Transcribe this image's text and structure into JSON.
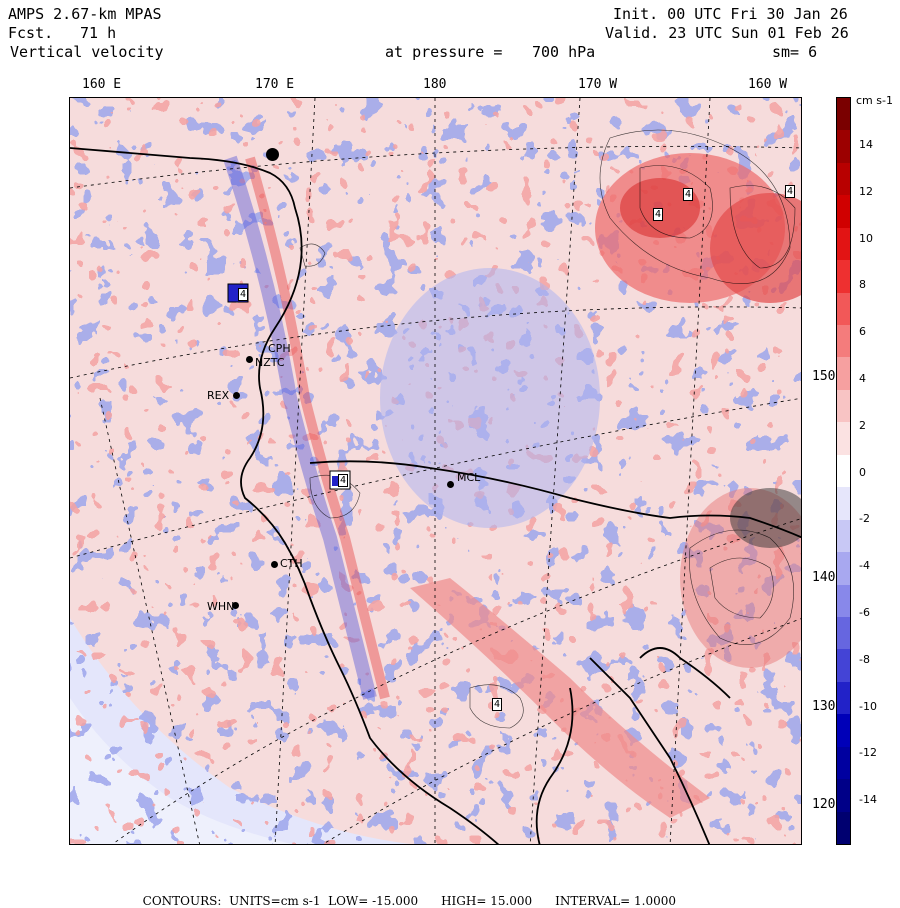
{
  "header": {
    "model": "AMPS 2.67-km MPAS",
    "fcst_label": "Fcst.",
    "fcst_value": "71 h",
    "field": "Vertical velocity",
    "init": "Init. 00 UTC Fri 30 Jan 26",
    "valid": "Valid. 23 UTC Sun 01 Feb 26",
    "pressure_label": "at pressure =",
    "pressure_value": "700 hPa",
    "smooth": "sm= 6"
  },
  "longitude_labels": [
    "160 E",
    "170 E",
    "180",
    "170 W",
    "160 W"
  ],
  "latitude_labels": [
    "150 W",
    "140 W",
    "130 W",
    "120 W"
  ],
  "colorbar": {
    "unit": "cm s-1",
    "ticks": [
      "14",
      "12",
      "10",
      "8",
      "6",
      "4",
      "2",
      "0",
      "-2",
      "-4",
      "-6",
      "-8",
      "-10",
      "-12",
      "-14"
    ],
    "colors": [
      "#7a0000",
      "#9c0000",
      "#b80000",
      "#d00000",
      "#e21414",
      "#ee3030",
      "#f25858",
      "#f47c7c",
      "#f6a0a0",
      "#f8c4c4",
      "#fbe2e2",
      "#ffffff",
      "#e6e6fb",
      "#c8c8f5",
      "#a8a8f0",
      "#8888ea",
      "#6666e0",
      "#4444d6",
      "#2222c8",
      "#0000b8",
      "#0000a0",
      "#000088",
      "#000070"
    ]
  },
  "stations": [
    "CPH",
    "NZTC",
    "REX",
    "MCL",
    "CTH",
    "WHN"
  ],
  "contour_labels": [
    "4",
    "4",
    "4",
    "4",
    "4",
    "4"
  ],
  "footer": {
    "contours": "CONTOURS:",
    "units": "UNITS=cm s-1",
    "low": "LOW= -15.000",
    "high": "HIGH= 15.000",
    "interval": "INTERVAL= 1.0000"
  }
}
